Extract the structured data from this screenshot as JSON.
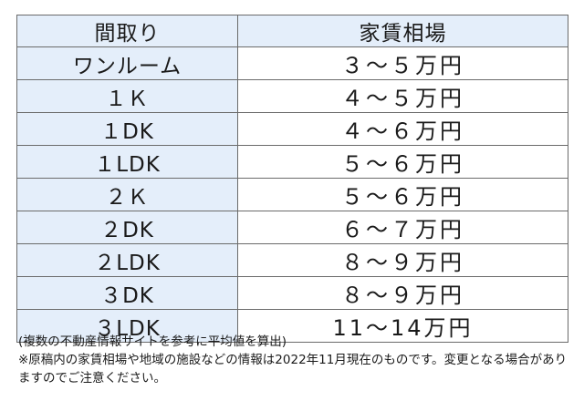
{
  "table": {
    "headers": {
      "layout": "間取り",
      "rent": "家賃相場"
    },
    "rows": [
      {
        "layout": "ワンルーム",
        "rent": "３～５万円"
      },
      {
        "layout": "１Ｋ",
        "rent": "４～５万円"
      },
      {
        "layout": "１DK",
        "rent": "４～６万円"
      },
      {
        "layout": "１LDK",
        "rent": "５～６万円"
      },
      {
        "layout": "２Ｋ",
        "rent": "５～６万円"
      },
      {
        "layout": "２DK",
        "rent": "６～７万円"
      },
      {
        "layout": "２LDK",
        "rent": "８～９万円"
      },
      {
        "layout": "３DK",
        "rent": "８～９万円"
      },
      {
        "layout": "３LDK",
        "rent": "11～14万円"
      }
    ]
  },
  "notes": {
    "line1": "(複数の不動産情報サイトを参考に平均値を算出)",
    "line2": "※原稿内の家賃相場や地域の施設などの情報は2022年11月現在のものです。変更となる場合がありますのでご注意ください。"
  },
  "colors": {
    "header_bg": "#e4eefa",
    "border": "#6b6b6b",
    "text": "#1a1a1a"
  }
}
